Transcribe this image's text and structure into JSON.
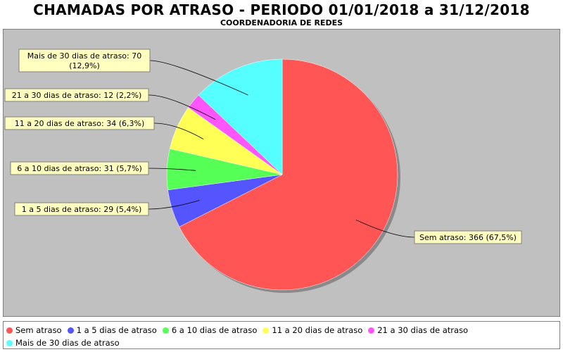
{
  "chart_data": {
    "type": "pie",
    "title": "CHAMADAS POR ATRASO - PERIODO 01/01/2018 a 31/12/2018",
    "subtitle": "COORDENADORIA DE REDES",
    "series": [
      {
        "name": "Sem atraso",
        "value": 366,
        "label": "Sem atraso: 366 (67,5%)",
        "color": "#ff5555"
      },
      {
        "name": "1 a 5 dias de atraso",
        "value": 29,
        "label": "1 a 5 dias de atraso: 29 (5,4%)",
        "color": "#5555ff"
      },
      {
        "name": "6 a 10 dias de atraso",
        "value": 31,
        "label": "6 a 10 dias de atraso: 31 (5,7%)",
        "color": "#55ff55"
      },
      {
        "name": "11 a 20 dias de atraso",
        "value": 34,
        "label": "11 a 20 dias de atraso: 34 (6,3%)",
        "color": "#ffff55"
      },
      {
        "name": "21 a 30 dias de atraso",
        "value": 12,
        "label": "21 a 30 dias de atraso: 12 (2,2%)",
        "color": "#ff55ff"
      },
      {
        "name": "Mais de 30 dias de atraso",
        "value": 70,
        "label_line1": "Mais de 30 dias de atraso: 70",
        "label_line2": "(12,9%)",
        "color": "#55ffff"
      }
    ],
    "legend_position": "bottom"
  }
}
